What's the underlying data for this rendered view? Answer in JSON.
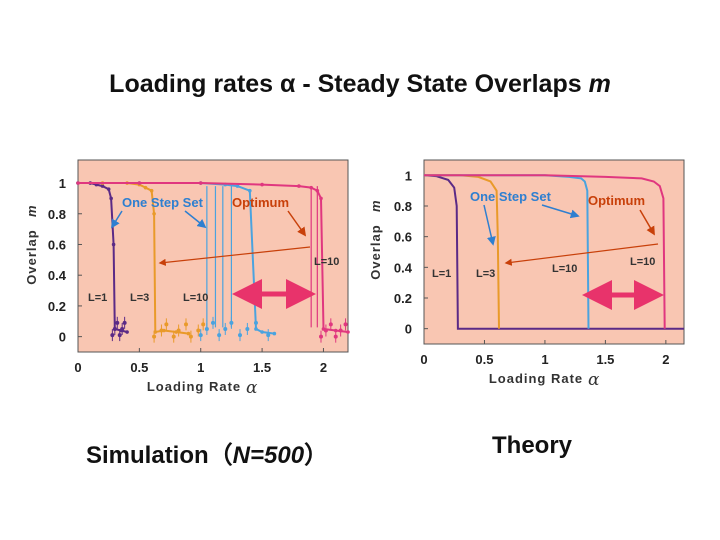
{
  "title": {
    "main": "Loading rates α - Steady State Overlaps",
    "italic": "m"
  },
  "captions": {
    "simulation_prefix": "Simulation（",
    "simulation_n": "N=500",
    "simulation_suffix": "）",
    "theory": "Theory"
  },
  "colors": {
    "plot_bg": "#f9c6b2",
    "L1": "#5b2a86",
    "L3": "#e99a2a",
    "L10": "#4aa3df",
    "optimum": "#e0377f",
    "one_step_arrow": "#2e7fd0",
    "optimum_arrow": "#c8400a",
    "double_arrow": "#e8336b"
  },
  "chart_data": [
    {
      "type": "line",
      "panel": "simulation",
      "xlabel": "Loading Rate",
      "xlabel_symbol": "α",
      "ylabel": "Overlap",
      "ylabel_symbol": "m",
      "xlim": [
        0,
        2.2
      ],
      "ylim": [
        -0.1,
        1.15
      ],
      "xticks": [
        0,
        0.5,
        1,
        1.5,
        2
      ],
      "xtick_labels": [
        "0",
        "0.5",
        "1",
        "1.5",
        "2"
      ],
      "yticks": [
        0,
        0.2,
        0.4,
        0.6,
        0.8,
        1
      ],
      "ytick_labels": [
        "0",
        "0.2",
        "0.4",
        "0.6",
        "0.8",
        "1"
      ],
      "series": [
        {
          "name": "L=1",
          "color_key": "L1",
          "x": [
            0,
            0.1,
            0.15,
            0.2,
            0.25,
            0.27,
            0.29,
            0.3,
            0.35,
            0.4
          ],
          "y": [
            1,
            1,
            0.99,
            0.98,
            0.96,
            0.9,
            0.6,
            0.05,
            0.04,
            0.03
          ]
        },
        {
          "name": "L=3",
          "color_key": "L3",
          "x": [
            0,
            0.2,
            0.4,
            0.5,
            0.55,
            0.6,
            0.62,
            0.63,
            0.7,
            0.8,
            0.9
          ],
          "y": [
            1,
            1,
            1,
            0.99,
            0.97,
            0.95,
            0.8,
            0.03,
            0.04,
            0.03,
            0.02
          ]
        },
        {
          "name": "L=10",
          "color_key": "L10",
          "x": [
            0,
            0.5,
            1,
            1.2,
            1.3,
            1.4,
            1.45,
            1.5,
            1.6
          ],
          "y": [
            1,
            1,
            1,
            0.99,
            0.98,
            0.95,
            0.05,
            0.03,
            0.02
          ]
        },
        {
          "name": "Optimum",
          "color_key": "optimum",
          "x": [
            0,
            0.5,
            1,
            1.5,
            1.8,
            1.9,
            1.95,
            1.98,
            2.0,
            2.1,
            2.2
          ],
          "y": [
            1,
            1,
            1,
            0.99,
            0.98,
            0.97,
            0.95,
            0.9,
            0.05,
            0.04,
            0.03
          ]
        }
      ],
      "annotations": {
        "one_step_set": "One Step Set",
        "optimum": "Optimum",
        "L1": "L=1",
        "L3": "L=3",
        "L10_low": "L=10",
        "L10_high": "L=10"
      }
    },
    {
      "type": "line",
      "panel": "theory",
      "xlabel": "Loading Rate",
      "xlabel_symbol": "α",
      "ylabel": "Overlap",
      "ylabel_symbol": "m",
      "xlim": [
        0,
        2.15
      ],
      "ylim": [
        -0.1,
        1.1
      ],
      "xticks": [
        0,
        0.5,
        1,
        1.5,
        2
      ],
      "xtick_labels": [
        "0",
        "0.5",
        "1",
        "1.5",
        "2"
      ],
      "yticks": [
        0,
        0.2,
        0.4,
        0.6,
        0.8,
        1
      ],
      "ytick_labels": [
        "0",
        "0.2",
        "0.4",
        "0.6",
        "0.8",
        "1"
      ],
      "series": [
        {
          "name": "L=1",
          "color_key": "L1",
          "x": [
            0,
            0.1,
            0.2,
            0.25,
            0.27,
            0.28,
            0.5,
            1,
            1.5,
            2,
            2.15
          ],
          "y": [
            1,
            0.995,
            0.97,
            0.92,
            0.8,
            0,
            0,
            0,
            0,
            0,
            0
          ]
        },
        {
          "name": "L=3",
          "color_key": "L3",
          "x": [
            0,
            0.3,
            0.45,
            0.55,
            0.6,
            0.61,
            0.62
          ],
          "y": [
            1,
            1,
            0.99,
            0.96,
            0.9,
            0.6,
            0
          ]
        },
        {
          "name": "L=10",
          "color_key": "L10",
          "x": [
            0,
            0.5,
            1,
            1.2,
            1.3,
            1.33,
            1.35,
            1.36
          ],
          "y": [
            1,
            1,
            1,
            0.99,
            0.98,
            0.96,
            0.9,
            0
          ]
        },
        {
          "name": "Optimum",
          "color_key": "optimum",
          "x": [
            0,
            0.5,
            1,
            1.5,
            1.8,
            1.9,
            1.95,
            1.98,
            1.99
          ],
          "y": [
            1,
            1,
            1,
            0.99,
            0.98,
            0.96,
            0.93,
            0.85,
            0
          ]
        }
      ],
      "annotations": {
        "one_step_set": "One Step Set",
        "optimum": "Optimum",
        "L1": "L=1",
        "L3": "L=3",
        "L10_mid": "L=10",
        "L10_right": "L=10"
      }
    }
  ]
}
